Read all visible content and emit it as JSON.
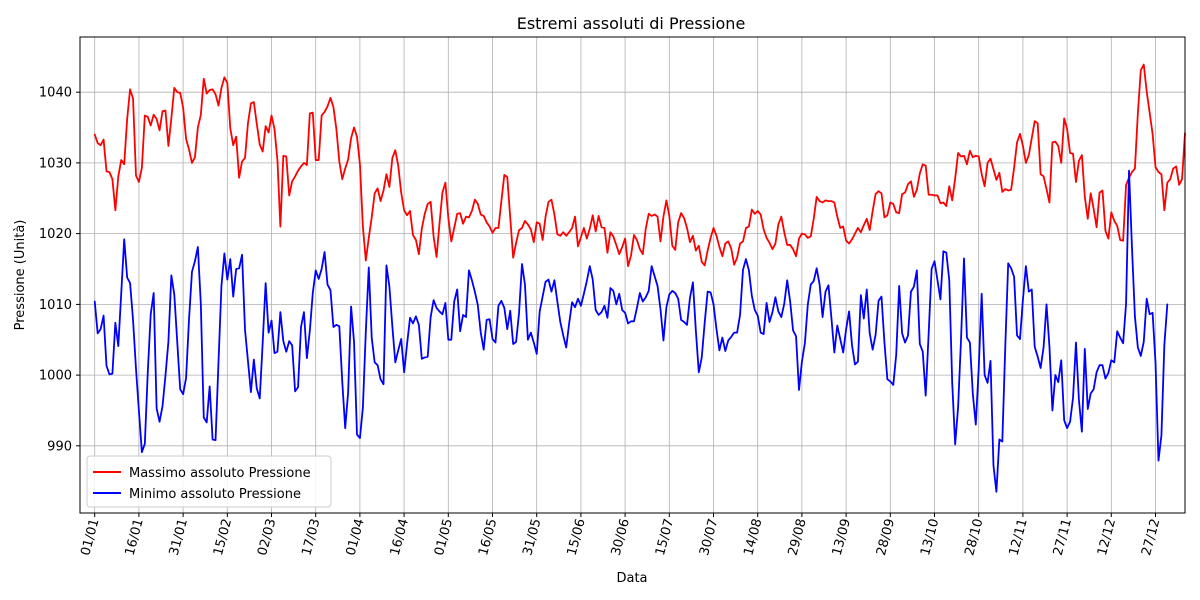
{
  "chart_data": {
    "type": "line",
    "title": "Estremi assoluti di Pressione",
    "xlabel": "Data",
    "ylabel": "Pressione (Unità)",
    "x_tick_labels": [
      "01/01",
      "16/01",
      "31/01",
      "15/02",
      "02/03",
      "17/03",
      "01/04",
      "16/04",
      "01/05",
      "16/05",
      "31/05",
      "15/06",
      "30/06",
      "15/07",
      "30/07",
      "14/08",
      "29/08",
      "13/09",
      "28/09",
      "13/10",
      "28/10",
      "12/11",
      "27/11",
      "12/12",
      "27/12"
    ],
    "tick_step_days": 15,
    "y_ticks": [
      990,
      1000,
      1010,
      1020,
      1030,
      1040
    ],
    "ylim": [
      980.5,
      1047.8
    ],
    "xlim_days": [
      -5,
      370
    ],
    "grid": true,
    "legend_position": "lower left",
    "series": [
      {
        "name": "Massimo assoluto Pressione",
        "color": "#ff0000",
        "values": [
          1034.0,
          1032.8,
          1032.5,
          1033.3,
          1028.8,
          1028.7,
          1027.7,
          1023.3,
          1028.1,
          1030.4,
          1029.8,
          1036.2,
          1040.4,
          1039.1,
          1028.2,
          1027.3,
          1029.3,
          1036.7,
          1036.5,
          1035.3,
          1036.8,
          1036.2,
          1034.6,
          1037.3,
          1037.4,
          1032.4,
          1036.3,
          1040.6,
          1040.0,
          1039.9,
          1037.8,
          1033.4,
          1031.9,
          1030.0,
          1030.8,
          1035.0,
          1036.8,
          1041.9,
          1039.8,
          1040.3,
          1040.4,
          1039.7,
          1038.1,
          1040.6,
          1042.1,
          1041.3,
          1034.9,
          1032.5,
          1033.7,
          1027.9,
          1030.2,
          1030.7,
          1035.6,
          1038.4,
          1038.6,
          1035.5,
          1032.6,
          1031.6,
          1035.2,
          1034.3,
          1036.7,
          1034.8,
          1030.4,
          1021.0,
          1031.0,
          1030.9,
          1025.4,
          1027.4,
          1028.1,
          1028.9,
          1029.5,
          1030.0,
          1029.7,
          1037.0,
          1037.1,
          1030.4,
          1030.4,
          1036.7,
          1037.2,
          1038.0,
          1039.2,
          1037.9,
          1034.8,
          1030.2,
          1027.7,
          1029.2,
          1030.5,
          1033.5,
          1035.0,
          1033.7,
          1029.8,
          1021.0,
          1016.2,
          1019.4,
          1022.3,
          1025.7,
          1026.4,
          1024.6,
          1026.1,
          1028.4,
          1026.6,
          1030.7,
          1031.8,
          1029.6,
          1025.8,
          1023.3,
          1022.6,
          1023.2,
          1019.8,
          1019.1,
          1017.1,
          1020.7,
          1022.8,
          1024.2,
          1024.5,
          1019.6,
          1016.7,
          1021.4,
          1025.8,
          1027.2,
          1022.2,
          1018.9,
          1020.8,
          1022.8,
          1022.9,
          1021.4,
          1022.4,
          1022.3,
          1023.2,
          1024.8,
          1024.2,
          1022.7,
          1022.5,
          1021.6,
          1021.0,
          1020.1,
          1020.8,
          1020.8,
          1024.6,
          1028.3,
          1028.0,
          1022.3,
          1016.6,
          1018.7,
          1020.5,
          1020.8,
          1021.8,
          1021.3,
          1020.6,
          1018.8,
          1021.6,
          1021.4,
          1019.1,
          1022.4,
          1024.5,
          1024.8,
          1022.7,
          1019.9,
          1019.7,
          1020.2,
          1019.7,
          1020.2,
          1020.8,
          1022.4,
          1018.2,
          1019.5,
          1020.8,
          1019.3,
          1020.7,
          1022.6,
          1020.3,
          1022.5,
          1020.9,
          1020.8,
          1017.3,
          1020.2,
          1019.6,
          1018.4,
          1017.1,
          1018.1,
          1019.3,
          1015.4,
          1016.9,
          1019.8,
          1019.1,
          1017.8,
          1017.1,
          1020.7,
          1022.8,
          1022.5,
          1022.7,
          1022.4,
          1018.9,
          1022.4,
          1024.7,
          1022.5,
          1018.3,
          1017.7,
          1021.6,
          1022.9,
          1022.2,
          1020.8,
          1018.8,
          1019.7,
          1017.6,
          1018.3,
          1016.0,
          1015.5,
          1017.6,
          1019.4,
          1020.8,
          1019.7,
          1018.1,
          1016.8,
          1018.6,
          1018.9,
          1017.9,
          1015.6,
          1016.6,
          1018.6,
          1018.9,
          1020.8,
          1021.0,
          1023.4,
          1022.8,
          1023.2,
          1022.7,
          1020.6,
          1019.4,
          1018.7,
          1017.8,
          1018.6,
          1021.3,
          1022.4,
          1020.2,
          1018.4,
          1018.4,
          1017.8,
          1016.8,
          1019.3,
          1020.0,
          1019.9,
          1019.4,
          1019.6,
          1022.1,
          1025.2,
          1024.6,
          1024.4,
          1024.7,
          1024.6,
          1024.6,
          1024.4,
          1022.4,
          1020.8,
          1021.0,
          1019.0,
          1018.6,
          1019.2,
          1020.0,
          1020.8,
          1020.2,
          1021.2,
          1022.1,
          1020.5,
          1023.2,
          1025.6,
          1026.0,
          1025.7,
          1022.3,
          1022.6,
          1024.4,
          1024.2,
          1023.0,
          1022.9,
          1025.6,
          1025.8,
          1027.0,
          1027.4,
          1025.2,
          1026.2,
          1028.5,
          1029.8,
          1029.6,
          1025.5,
          1025.5,
          1025.4,
          1025.4,
          1024.3,
          1024.4,
          1023.9,
          1026.7,
          1024.7,
          1027.8,
          1031.4,
          1030.9,
          1031.0,
          1029.8,
          1031.7,
          1030.8,
          1031.0,
          1030.9,
          1028.4,
          1026.7,
          1030.0,
          1030.6,
          1029.1,
          1027.6,
          1028.6,
          1025.9,
          1026.3,
          1026.1,
          1026.2,
          1029.3,
          1032.9,
          1034.1,
          1032.4,
          1030.0,
          1031.1,
          1033.5,
          1035.9,
          1035.6,
          1028.4,
          1028.1,
          1026.3,
          1024.4,
          1032.9,
          1033.0,
          1032.4,
          1030.0,
          1036.3,
          1034.8,
          1031.4,
          1031.3,
          1027.3,
          1030.3,
          1031.1,
          1025.2,
          1022.1,
          1025.7,
          1023.5,
          1020.9,
          1025.8,
          1026.1,
          1020.4,
          1019.3,
          1023.0,
          1021.8,
          1021.1,
          1019.1,
          1019.0,
          1026.9,
          1027.9,
          1028.7,
          1029.2,
          1037.0,
          1043.1,
          1043.9,
          1040.1,
          1037.1,
          1034.1,
          1029.4,
          1028.7,
          1028.4,
          1023.3,
          1027.2,
          1027.7,
          1029.2,
          1029.5,
          1026.9,
          1027.7,
          1034.2
        ]
      },
      {
        "name": "Minimo assoluto Pressione",
        "color": "#0000ff",
        "values": [
          1010.4,
          1005.9,
          1006.5,
          1008.4,
          1001.3,
          1000.1,
          1000.2,
          1007.4,
          1004.1,
          1011.6,
          1019.2,
          1013.8,
          1013.0,
          1007.8,
          1000.9,
          994.9,
          989.1,
          990.3,
          1000.4,
          1008.6,
          1011.6,
          995.3,
          993.4,
          995.6,
          999.9,
          1004.7,
          1014.1,
          1011.4,
          1004.7,
          998.0,
          997.3,
          999.6,
          1007.9,
          1014.6,
          1016.1,
          1018.1,
          1010.1,
          994.0,
          993.3,
          998.4,
          990.9,
          990.8,
          1001.8,
          1012.6,
          1017.2,
          1013.5,
          1016.4,
          1011.1,
          1015.0,
          1015.1,
          1017.0,
          1006.4,
          1002.0,
          997.6,
          1002.2,
          998.1,
          996.7,
          1004.6,
          1013.0,
          1006.0,
          1007.7,
          1003.1,
          1003.3,
          1008.9,
          1004.8,
          1003.3,
          1004.8,
          1004.2,
          997.7,
          998.3,
          1006.8,
          1008.9,
          1002.4,
          1006.3,
          1011.6,
          1014.8,
          1013.6,
          1015.0,
          1017.4,
          1012.8,
          1012.0,
          1006.8,
          1007.1,
          1006.9,
          999.1,
          992.5,
          997.6,
          1009.7,
          1004.7,
          991.6,
          991.1,
          995.4,
          1006.2,
          1015.2,
          1005.3,
          1001.8,
          1001.4,
          999.4,
          998.7,
          1015.5,
          1012.5,
          1006.9,
          1001.8,
          1003.5,
          1005.1,
          1000.4,
          1004.4,
          1008.1,
          1007.3,
          1008.3,
          1007.1,
          1002.3,
          1002.5,
          1002.6,
          1008.2,
          1010.6,
          1009.5,
          1009.0,
          1008.6,
          1010.2,
          1005.0,
          1005.0,
          1010.4,
          1012.1,
          1006.2,
          1008.5,
          1008.2,
          1014.8,
          1013.4,
          1011.8,
          1009.9,
          1006.0,
          1003.6,
          1007.8,
          1007.9,
          1005.1,
          1004.6,
          1009.8,
          1010.5,
          1009.5,
          1006.5,
          1009.1,
          1004.4,
          1004.7,
          1008.8,
          1015.7,
          1012.8,
          1005.0,
          1006.0,
          1004.6,
          1003.0,
          1009.0,
          1011.1,
          1013.2,
          1013.5,
          1011.8,
          1013.4,
          1010.4,
          1007.5,
          1005.6,
          1003.9,
          1007.3,
          1010.3,
          1009.6,
          1010.8,
          1009.8,
          1011.5,
          1013.3,
          1015.4,
          1013.5,
          1009.2,
          1008.5,
          1008.9,
          1009.8,
          1008.1,
          1012.3,
          1011.9,
          1010.0,
          1011.5,
          1009.2,
          1008.8,
          1007.3,
          1007.6,
          1007.6,
          1009.5,
          1011.6,
          1010.4,
          1011.0,
          1011.9,
          1015.4,
          1014.0,
          1012.6,
          1009.3,
          1004.9,
          1009.6,
          1011.4,
          1011.9,
          1011.6,
          1010.8,
          1007.8,
          1007.5,
          1007.1,
          1010.9,
          1013.1,
          1006.3,
          1000.4,
          1002.5,
          1007.4,
          1011.8,
          1011.7,
          1010.0,
          1006.5,
          1003.5,
          1005.3,
          1003.4,
          1004.9,
          1005.4,
          1006.0,
          1006.0,
          1008.5,
          1014.9,
          1016.4,
          1014.8,
          1011.2,
          1009.2,
          1008.4,
          1006.0,
          1005.8,
          1010.2,
          1007.5,
          1008.9,
          1011.0,
          1009.0,
          1008.2,
          1010.1,
          1013.4,
          1010.4,
          1006.3,
          1005.5,
          997.9,
          1001.9,
          1004.5,
          1010.0,
          1012.8,
          1013.3,
          1015.1,
          1012.8,
          1008.2,
          1011.8,
          1012.7,
          1008.1,
          1003.2,
          1007.0,
          1005.1,
          1003.2,
          1006.5,
          1009.0,
          1004.2,
          1001.5,
          1001.9,
          1011.3,
          1008.0,
          1012.1,
          1005.9,
          1003.6,
          1005.7,
          1010.5,
          1011.1,
          1004.6,
          999.4,
          999.1,
          998.6,
          1002.9,
          1012.6,
          1005.9,
          1004.6,
          1005.6,
          1011.8,
          1012.5,
          1014.8,
          1004.4,
          1003.3,
          997.1,
          1005.8,
          1015.0,
          1016.1,
          1013.4,
          1010.7,
          1017.5,
          1017.3,
          1013.4,
          998.9,
          990.2,
          995.5,
          1005.1,
          1016.5,
          1005.3,
          1004.6,
          997.3,
          993.0,
          1001.0,
          1011.5,
          1000.0,
          998.9,
          1002.0,
          987.2,
          983.5,
          990.9,
          990.6,
          1003.9,
          1015.8,
          1015.1,
          1013.9,
          1005.6,
          1005.1,
          1010.7,
          1015.4,
          1011.8,
          1012.1,
          1004.0,
          1002.6,
          1001.0,
          1003.9,
          1010.0,
          1004.0,
          995.0,
          1000.0,
          999.0,
          1002.1,
          993.6,
          992.5,
          993.4,
          996.8,
          1004.6,
          996.5,
          992.0,
          1003.7,
          995.2,
          997.4,
          998.0,
          1000.4,
          1001.4,
          1001.4,
          999.5,
          1000.3,
          1002.1,
          1001.8,
          1006.2,
          1005.3,
          1004.5,
          1010.1,
          1028.9,
          1018.1,
          1008.3,
          1003.9,
          1002.7,
          1004.7,
          1010.8,
          1008.6,
          1008.8,
          1001.7,
          987.9,
          991.5,
          1004.3,
          1010.0
        ]
      }
    ]
  }
}
